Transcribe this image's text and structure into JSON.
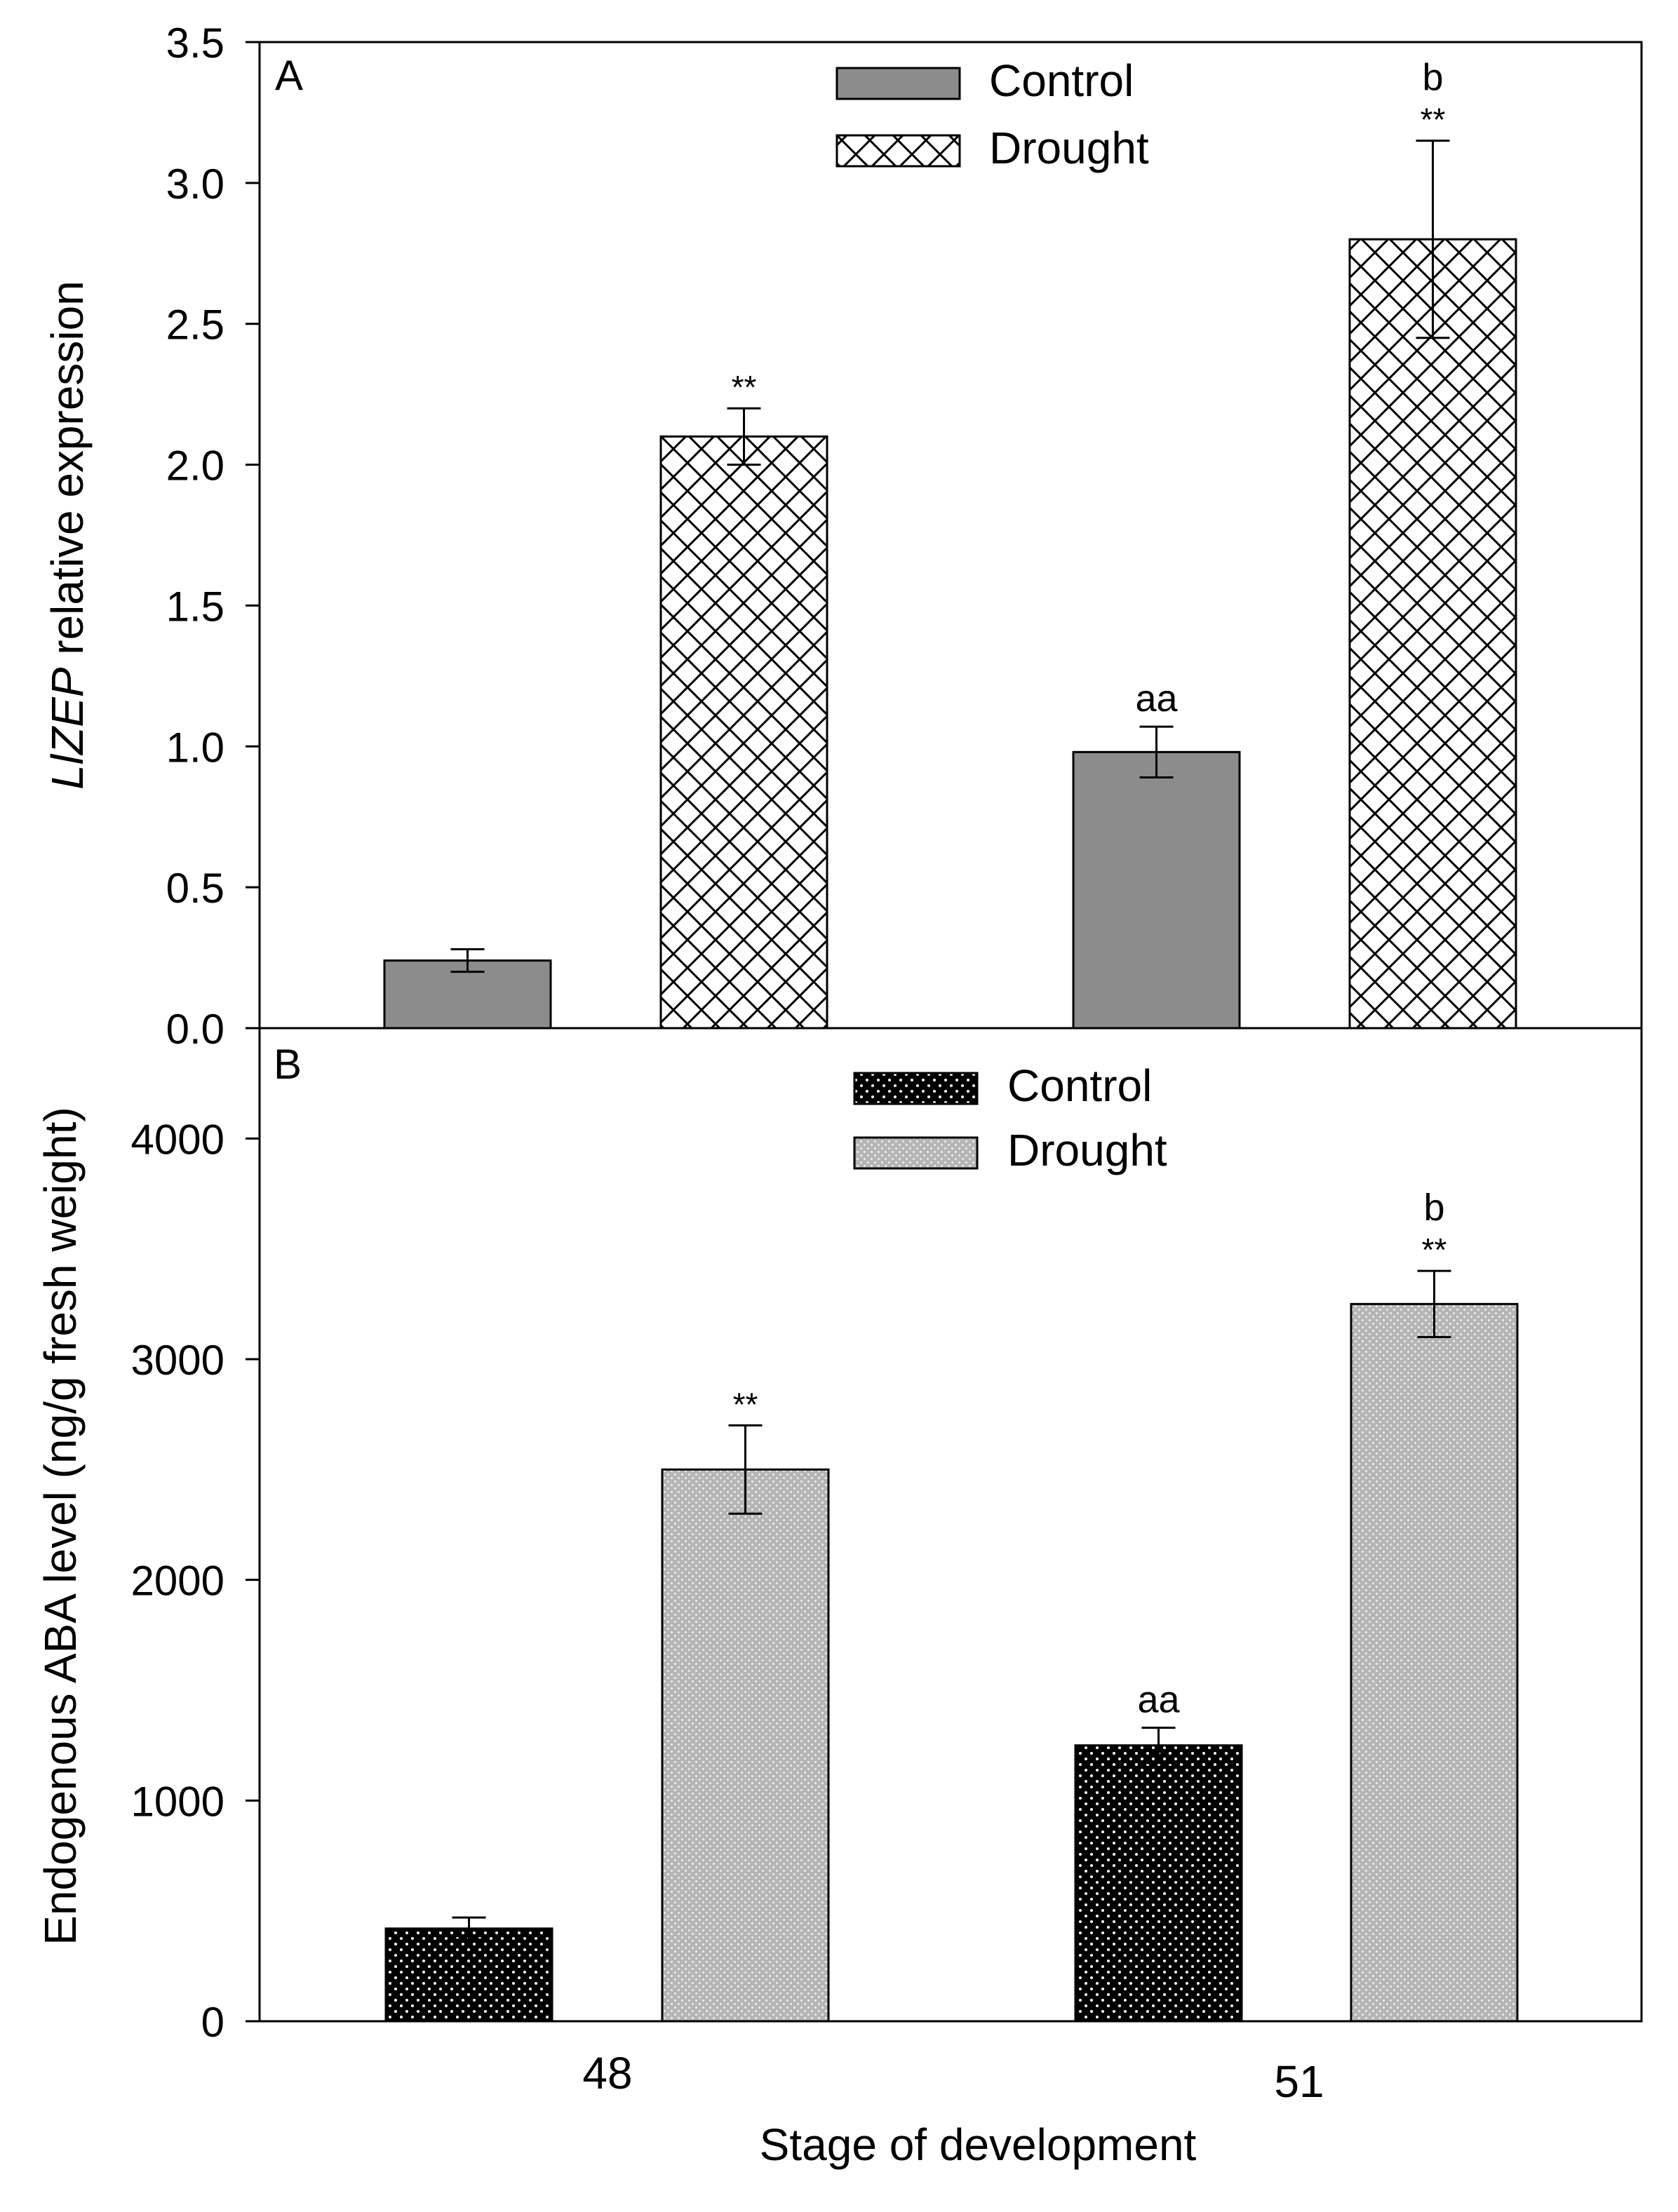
{
  "figure": {
    "xlabel": "Stage of development",
    "categories": [
      "48",
      "51"
    ]
  },
  "chart_data": [
    {
      "type": "bar",
      "panel_label": "A",
      "title": "",
      "ylabel_italic": "LlZEP",
      "ylabel_rest": " relative expression",
      "xlabel": "Stage of development",
      "categories": [
        "48",
        "51"
      ],
      "ylim": [
        0,
        3.5
      ],
      "yticks": [
        0.0,
        0.5,
        1.0,
        1.5,
        2.0,
        2.5,
        3.0,
        3.5
      ],
      "ytick_labels": [
        "0.0",
        "0.5",
        "1.0",
        "1.5",
        "2.0",
        "2.5",
        "3.0",
        "3.5"
      ],
      "legend_position": "top-center",
      "series": [
        {
          "name": "Control",
          "pattern": "solid-gray",
          "values": [
            0.24,
            0.98
          ],
          "errors": [
            0.04,
            0.09
          ],
          "annotations": [
            "",
            "aa"
          ]
        },
        {
          "name": "Drought",
          "pattern": "crosshatch",
          "values": [
            2.1,
            2.8
          ],
          "errors": [
            0.1,
            0.35
          ],
          "annotations": [
            "**",
            "**"
          ],
          "top_annotations": [
            "",
            "b"
          ]
        }
      ]
    },
    {
      "type": "bar",
      "panel_label": "B",
      "title": "",
      "ylabel": "Endogenous ABA level (ng/g fresh weight)",
      "xlabel": "Stage of development",
      "categories": [
        "48",
        "51"
      ],
      "ylim": [
        0,
        4500
      ],
      "yticks": [
        0,
        1000,
        2000,
        3000,
        4000
      ],
      "ytick_labels": [
        "0",
        "1000",
        "2000",
        "3000",
        "4000"
      ],
      "legend_position": "top-center",
      "series": [
        {
          "name": "Control",
          "pattern": "black-dotted",
          "values": [
            420,
            1250
          ],
          "errors": [
            50,
            80
          ],
          "annotations": [
            "",
            "aa"
          ]
        },
        {
          "name": "Drought",
          "pattern": "gray-dotted",
          "values": [
            2500,
            3250
          ],
          "errors": [
            200,
            150
          ],
          "annotations": [
            "**",
            "**"
          ],
          "top_annotations": [
            "",
            "b"
          ]
        }
      ]
    }
  ]
}
